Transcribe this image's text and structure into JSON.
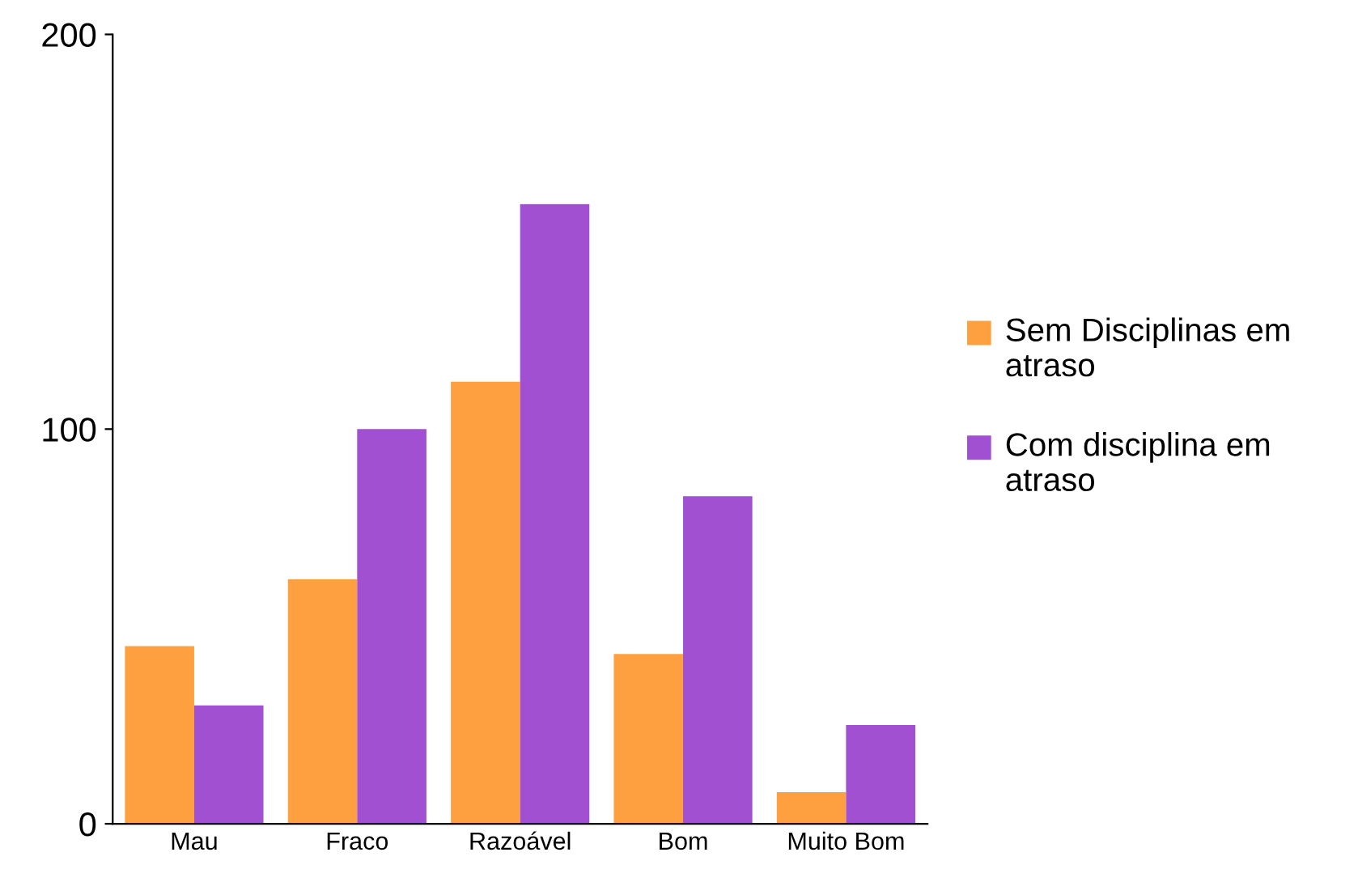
{
  "chart_data": {
    "type": "bar",
    "categories": [
      "Mau",
      "Fraco",
      "Razoável",
      "Bom",
      "Muito Bom"
    ],
    "series": [
      {
        "name": "Sem Disciplinas em atraso",
        "color": "#ffa040",
        "values": [
          45,
          62,
          112,
          43,
          8
        ]
      },
      {
        "name": "Com disciplina em atraso",
        "color": "#a050d0",
        "values": [
          30,
          100,
          157,
          83,
          25
        ]
      }
    ],
    "ylim": [
      0,
      200
    ],
    "yticks": [
      0,
      100,
      200
    ],
    "grid": false,
    "legend": "right"
  }
}
